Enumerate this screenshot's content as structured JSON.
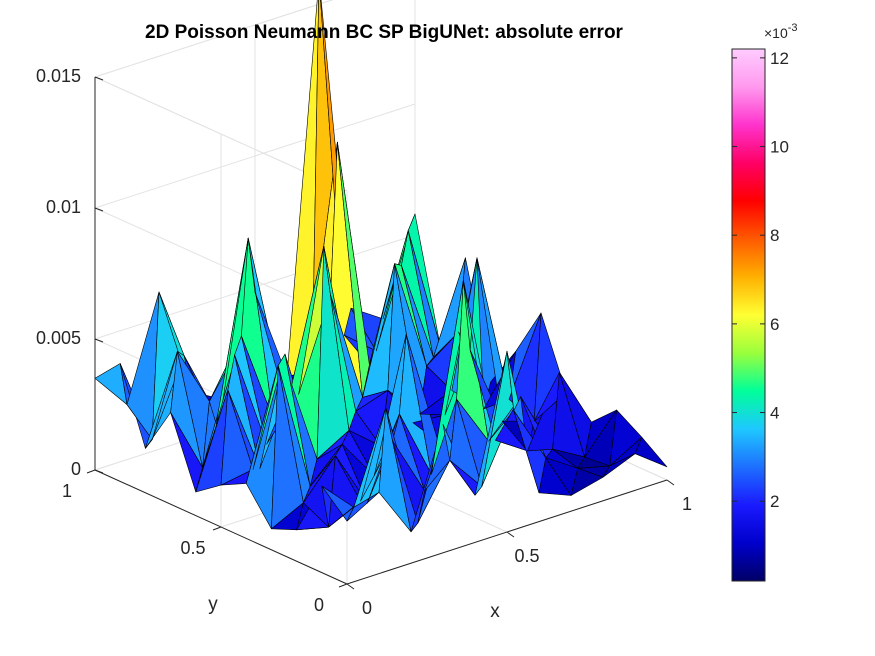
{
  "chart_data": {
    "type": "surface3d",
    "title": "2D Poisson Neumann BC SP BigUNet: absolute error",
    "xlabel": "x",
    "ylabel": "y",
    "zlabel": "",
    "xlim": [
      0,
      1
    ],
    "ylim": [
      0,
      1
    ],
    "zlim": [
      0,
      0.015
    ],
    "x_ticks": [
      {
        "value": 0,
        "label": "0"
      },
      {
        "value": 0.5,
        "label": "0.5"
      },
      {
        "value": 1,
        "label": "1"
      }
    ],
    "y_ticks": [
      {
        "value": 0,
        "label": "0"
      },
      {
        "value": 0.5,
        "label": "0.5"
      },
      {
        "value": 1,
        "label": "1"
      }
    ],
    "z_ticks": [
      {
        "value": 0,
        "label": "0"
      },
      {
        "value": 0.005,
        "label": "0.005"
      },
      {
        "value": 0.01,
        "label": "0.01"
      },
      {
        "value": 0.015,
        "label": "0.015"
      }
    ],
    "grid": true,
    "colormap": "jet",
    "colorbar": {
      "placement": "right",
      "exponent_label": "×10",
      "exponent_power": "-3",
      "range": [
        0.2,
        12.2
      ],
      "ticks": [
        {
          "value": 2,
          "label": "2"
        },
        {
          "value": 4,
          "label": "4"
        },
        {
          "value": 6,
          "label": "6"
        },
        {
          "value": 8,
          "label": "8"
        },
        {
          "value": 10,
          "label": "10"
        },
        {
          "value": 12,
          "label": "12"
        }
      ],
      "colors": [
        "#000066",
        "#0000cc",
        "#1a1aff",
        "#1e6fff",
        "#1ec8ff",
        "#00ff9a",
        "#9aff3c",
        "#ffff33",
        "#ffb000",
        "#ff5a00",
        "#ff0000",
        "#ff0066",
        "#ff33cc",
        "#ff99ee",
        "#ffccff"
      ]
    },
    "grid_x": [
      0,
      0.1,
      0.2,
      0.3,
      0.4,
      0.5,
      0.6,
      0.7,
      0.8,
      0.9,
      1.0
    ],
    "grid_y": [
      0,
      0.1,
      0.2,
      0.3,
      0.4,
      0.5,
      0.6,
      0.7,
      0.8,
      0.9,
      1.0
    ],
    "z_rows_by_y": [
      [
        0.0024,
        0.0031,
        0.0012,
        0.0049,
        0.0018,
        0.0069,
        0.0011,
        0.0006,
        0.0009,
        0.0014,
        0.0005
      ],
      [
        0.0033,
        0.0021,
        0.0055,
        0.0007,
        0.0027,
        0.0013,
        0.0038,
        0.0016,
        0.0008,
        0.0005,
        0.0012
      ],
      [
        0.0012,
        0.0009,
        0.0015,
        0.0034,
        0.0011,
        0.0042,
        0.0022,
        0.0035,
        0.0011,
        0.0004,
        0.0018
      ],
      [
        0.0008,
        0.0014,
        0.0028,
        0.0006,
        0.0036,
        0.0009,
        0.0079,
        0.0014,
        0.0006,
        0.0032,
        0.0009
      ],
      [
        0.0021,
        0.0062,
        0.0012,
        0.0024,
        0.0008,
        0.0058,
        0.0013,
        0.0044,
        0.0013,
        0.0009,
        0.0016
      ],
      [
        0.0016,
        0.0018,
        0.0058,
        0.0014,
        0.0021,
        0.0011,
        0.0016,
        0.0015,
        0.0071,
        0.0013,
        0.0042
      ],
      [
        0.0009,
        0.0044,
        0.001,
        0.0038,
        0.0087,
        0.002,
        0.0024,
        0.0011,
        0.0016,
        0.0005,
        0.0023
      ],
      [
        0.0035,
        0.001,
        0.0049,
        0.0011,
        0.0026,
        0.006,
        0.0017,
        0.0064,
        0.0021,
        0.003,
        0.0007
      ],
      [
        0.0017,
        0.005,
        0.0027,
        0.0048,
        0.0012,
        0.0021,
        0.011,
        0.0021,
        0.0055,
        0.0016,
        0.005
      ],
      [
        0.0045,
        0.0012,
        0.004,
        0.001,
        0.0077,
        0.0018,
        0.0018,
        0.0028,
        0.0018,
        0.006,
        0.0012
      ],
      [
        0.0035,
        0.0021,
        0.006,
        0.0018,
        0.0011,
        0.0048,
        0.0012,
        0.016,
        0.003,
        0.0022,
        0.0058
      ]
    ]
  }
}
